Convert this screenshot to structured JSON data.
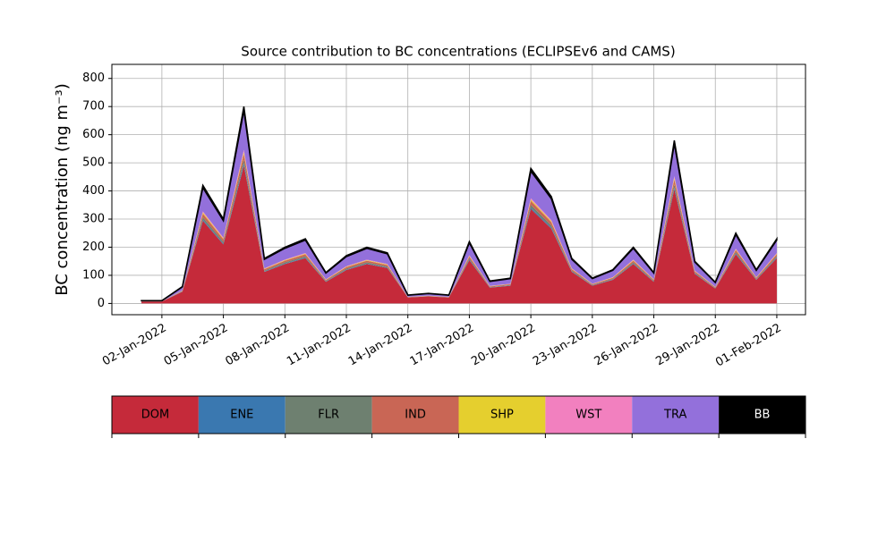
{
  "chart_data": {
    "type": "stacked-area",
    "title": "Source contribution to BC concentrations (ECLIPSEv6 and CAMS)",
    "ylabel": "BC concentration (ng m⁻³)",
    "x": [
      "01-Jan-2022",
      "02-Jan-2022",
      "03-Jan-2022",
      "04-Jan-2022",
      "05-Jan-2022",
      "06-Jan-2022",
      "07-Jan-2022",
      "08-Jan-2022",
      "09-Jan-2022",
      "10-Jan-2022",
      "11-Jan-2022",
      "12-Jan-2022",
      "13-Jan-2022",
      "14-Jan-2022",
      "15-Jan-2022",
      "16-Jan-2022",
      "17-Jan-2022",
      "18-Jan-2022",
      "19-Jan-2022",
      "20-Jan-2022",
      "21-Jan-2022",
      "22-Jan-2022",
      "23-Jan-2022",
      "24-Jan-2022",
      "25-Jan-2022",
      "26-Jan-2022",
      "27-Jan-2022",
      "28-Jan-2022",
      "29-Jan-2022",
      "30-Jan-2022",
      "31-Jan-2022",
      "01-Feb-2022"
    ],
    "series": [
      {
        "name": "DOM",
        "color": "#c52a3a",
        "values": [
          7,
          7,
          42,
          294,
          210,
          490,
          112,
          140,
          161,
          77,
          119,
          140,
          126,
          21,
          25,
          21,
          154,
          56,
          63,
          336,
          266,
          112,
          63,
          84,
          140,
          77,
          406,
          105,
          53,
          175,
          84,
          161
        ]
      },
      {
        "name": "ENE",
        "color": "#3a78b0",
        "values": [
          0.1,
          0.1,
          0.6,
          4.2,
          3,
          7,
          1.6,
          2,
          2.3,
          1.1,
          1.7,
          2,
          1.8,
          0.3,
          0.4,
          0.3,
          2.2,
          0.8,
          0.9,
          4.8,
          3.8,
          1.6,
          0.9,
          1.2,
          2,
          1.1,
          5.8,
          1.5,
          0.8,
          2.5,
          1.2,
          2.3
        ]
      },
      {
        "name": "FLR",
        "color": "#6e8070",
        "values": [
          0.2,
          0.2,
          1.2,
          8.4,
          6,
          14,
          3.2,
          4,
          4.6,
          2.2,
          3.4,
          4,
          3.6,
          0.6,
          0.7,
          0.6,
          4.4,
          1.6,
          1.8,
          9.6,
          7.6,
          3.2,
          1.8,
          2.4,
          4,
          2.2,
          11.6,
          3,
          1.5,
          5,
          2.4,
          4.6
        ]
      },
      {
        "name": "IND",
        "color": "#c96655",
        "values": [
          0.3,
          0.3,
          1.8,
          12.6,
          9,
          21,
          4.8,
          6,
          6.9,
          3.3,
          5.1,
          6,
          5.4,
          0.9,
          1.1,
          0.9,
          6.6,
          2.4,
          2.7,
          14.4,
          11.4,
          4.8,
          2.7,
          3.6,
          6,
          3.3,
          17.4,
          4.5,
          2.3,
          7.5,
          3.6,
          6.9
        ]
      },
      {
        "name": "SHP",
        "color": "#e5cf2e",
        "values": [
          0.1,
          0.1,
          0.6,
          4.2,
          3,
          7,
          1.6,
          2,
          2.3,
          1.1,
          1.7,
          2,
          1.8,
          0.3,
          0.4,
          0.3,
          2.2,
          0.8,
          0.9,
          4.8,
          3.8,
          1.6,
          0.9,
          1.2,
          2,
          1.1,
          5.8,
          1.5,
          0.8,
          2.5,
          1.2,
          2.3
        ]
      },
      {
        "name": "WST",
        "color": "#f280bf",
        "values": [
          0.1,
          0.1,
          0.6,
          4.2,
          3,
          7,
          1.6,
          2,
          2.3,
          1.1,
          1.7,
          2,
          1.8,
          0.3,
          0.4,
          0.3,
          2.2,
          0.8,
          0.9,
          4.8,
          3.8,
          1.6,
          0.9,
          1.2,
          2,
          1.1,
          5.8,
          1.5,
          0.8,
          2.5,
          1.2,
          2.3
        ]
      },
      {
        "name": "TRA",
        "color": "#9370db",
        "values": [
          2,
          2,
          12,
          84,
          60,
          140,
          32,
          40,
          46,
          22,
          34,
          40,
          36,
          6,
          7,
          6,
          44,
          16,
          18,
          96,
          76,
          32,
          18,
          24,
          40,
          22,
          116,
          30,
          15,
          50,
          24,
          46
        ]
      },
      {
        "name": "BB",
        "color": "#000000",
        "values": [
          0.2,
          0.2,
          1.2,
          8.4,
          6,
          14,
          3.2,
          4,
          4.6,
          2.2,
          3.4,
          4,
          3.6,
          0.6,
          0.7,
          0.6,
          4.4,
          1.6,
          1.8,
          9.6,
          7.6,
          3.2,
          1.8,
          2.4,
          4,
          2.2,
          11.6,
          3,
          1.5,
          5,
          2.4,
          4.6
        ]
      }
    ],
    "xticks": [
      "02-Jan-2022",
      "05-Jan-2022",
      "08-Jan-2022",
      "11-Jan-2022",
      "14-Jan-2022",
      "17-Jan-2022",
      "20-Jan-2022",
      "23-Jan-2022",
      "26-Jan-2022",
      "29-Jan-2022",
      "01-Feb-2022"
    ],
    "ylim": [
      -40,
      850
    ],
    "yticks": [
      0,
      100,
      200,
      300,
      400,
      500,
      600,
      700,
      800
    ],
    "grid": true
  }
}
